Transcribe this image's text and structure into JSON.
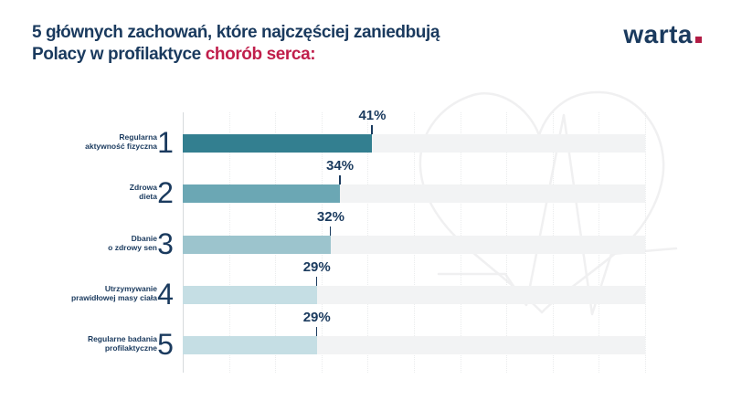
{
  "title": {
    "line1": "5 głównych zachowań, które najczęściej zaniedbują",
    "line2_prefix": "Polacy w profilaktyce ",
    "line2_highlight": "chorób serca:"
  },
  "logo": {
    "text": "warta",
    "dot": "."
  },
  "colors": {
    "navy": "#1a3a5e",
    "red": "#c01e4b",
    "track": "#f2f3f4",
    "grid": "#eaeced",
    "axis": "#d6dadd",
    "watermark": "#f0f0f1"
  },
  "chart_data": {
    "type": "bar",
    "orientation": "horizontal",
    "title": "5 głównych zachowań, które najczęściej zaniedbują Polacy w profilaktyce chorób serca",
    "categories": [
      "Regularna aktywność fizyczna",
      "Zdrowa dieta",
      "Dbanie o zdrowy sen",
      "Utrzymywanie prawidłowej masy ciała",
      "Regularne badania profilaktyczne"
    ],
    "category_lines": [
      [
        "Regularna",
        "aktywność fizyczna"
      ],
      [
        "Zdrowa",
        "dieta"
      ],
      [
        "Dbanie",
        "o zdrowy sen"
      ],
      [
        "Utrzymywanie",
        "prawidłowej masy ciała"
      ],
      [
        "Regularne badania",
        "profilaktyczne"
      ]
    ],
    "ranks": [
      "1",
      "2",
      "3",
      "4",
      "5"
    ],
    "values": [
      41,
      34,
      32,
      29,
      29
    ],
    "value_labels": [
      "41%",
      "34%",
      "32%",
      "29%",
      "29%"
    ],
    "bar_colors": [
      "#337f90",
      "#6ba7b4",
      "#9cc4cd",
      "#c5dee4",
      "#c5dee4"
    ],
    "unit": "%",
    "xlim": [
      0,
      100
    ],
    "grid": true,
    "legend": false
  }
}
